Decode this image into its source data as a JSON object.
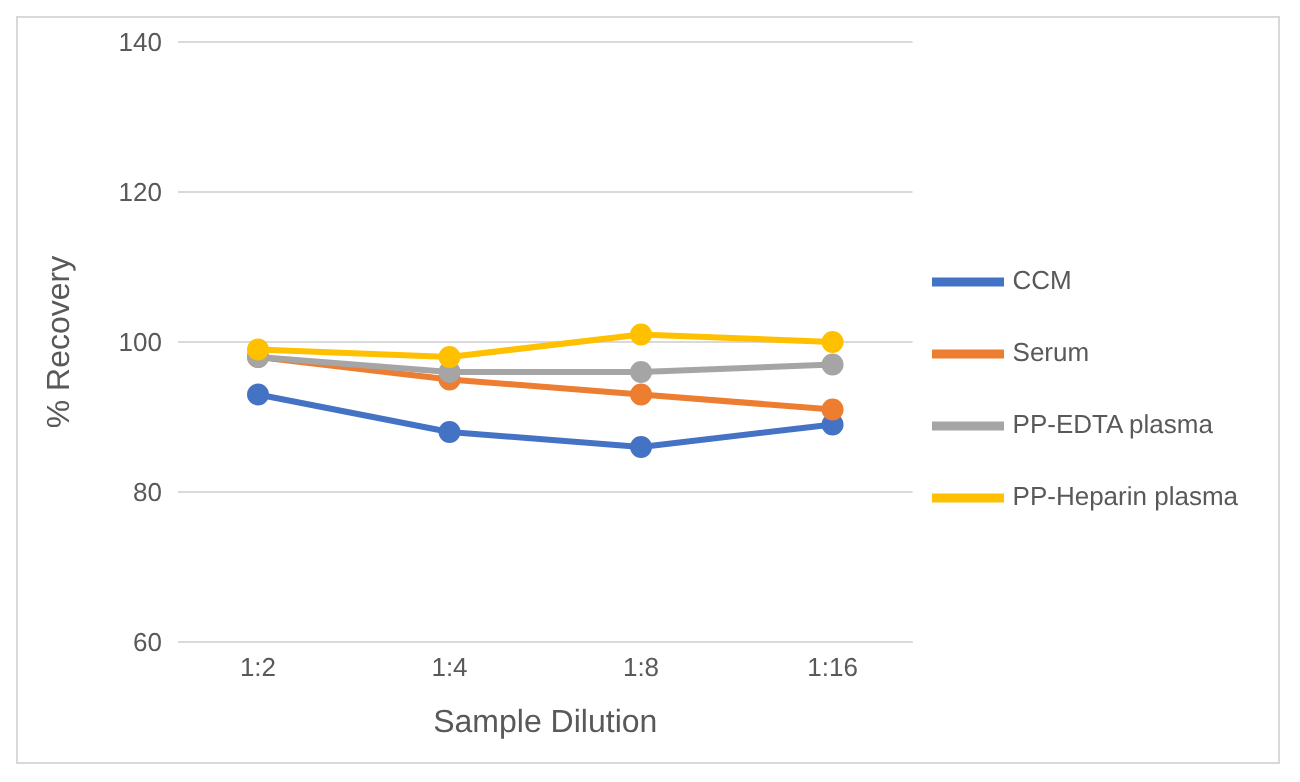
{
  "chart_data": {
    "type": "line",
    "xlabel": "Sample Dilution",
    "ylabel": "% Recovery",
    "categories": [
      "1:2",
      "1:4",
      "1:8",
      "1:16"
    ],
    "series": [
      {
        "name": "CCM",
        "color": "#4472c4",
        "values": [
          93,
          88,
          86,
          89
        ]
      },
      {
        "name": "Serum",
        "color": "#ed7d31",
        "values": [
          98,
          95,
          93,
          91
        ]
      },
      {
        "name": "PP-EDTA plasma",
        "color": "#a5a5a5",
        "values": [
          98,
          96,
          96,
          97
        ]
      },
      {
        "name": "PP-Heparin plasma",
        "color": "#ffc000",
        "values": [
          99,
          98,
          101,
          100
        ]
      }
    ],
    "ylim": [
      60,
      140
    ],
    "yticks": [
      60,
      80,
      100,
      120,
      140
    ],
    "grid": "y",
    "legend": "right",
    "marker": "circle",
    "line_style": "solid"
  }
}
